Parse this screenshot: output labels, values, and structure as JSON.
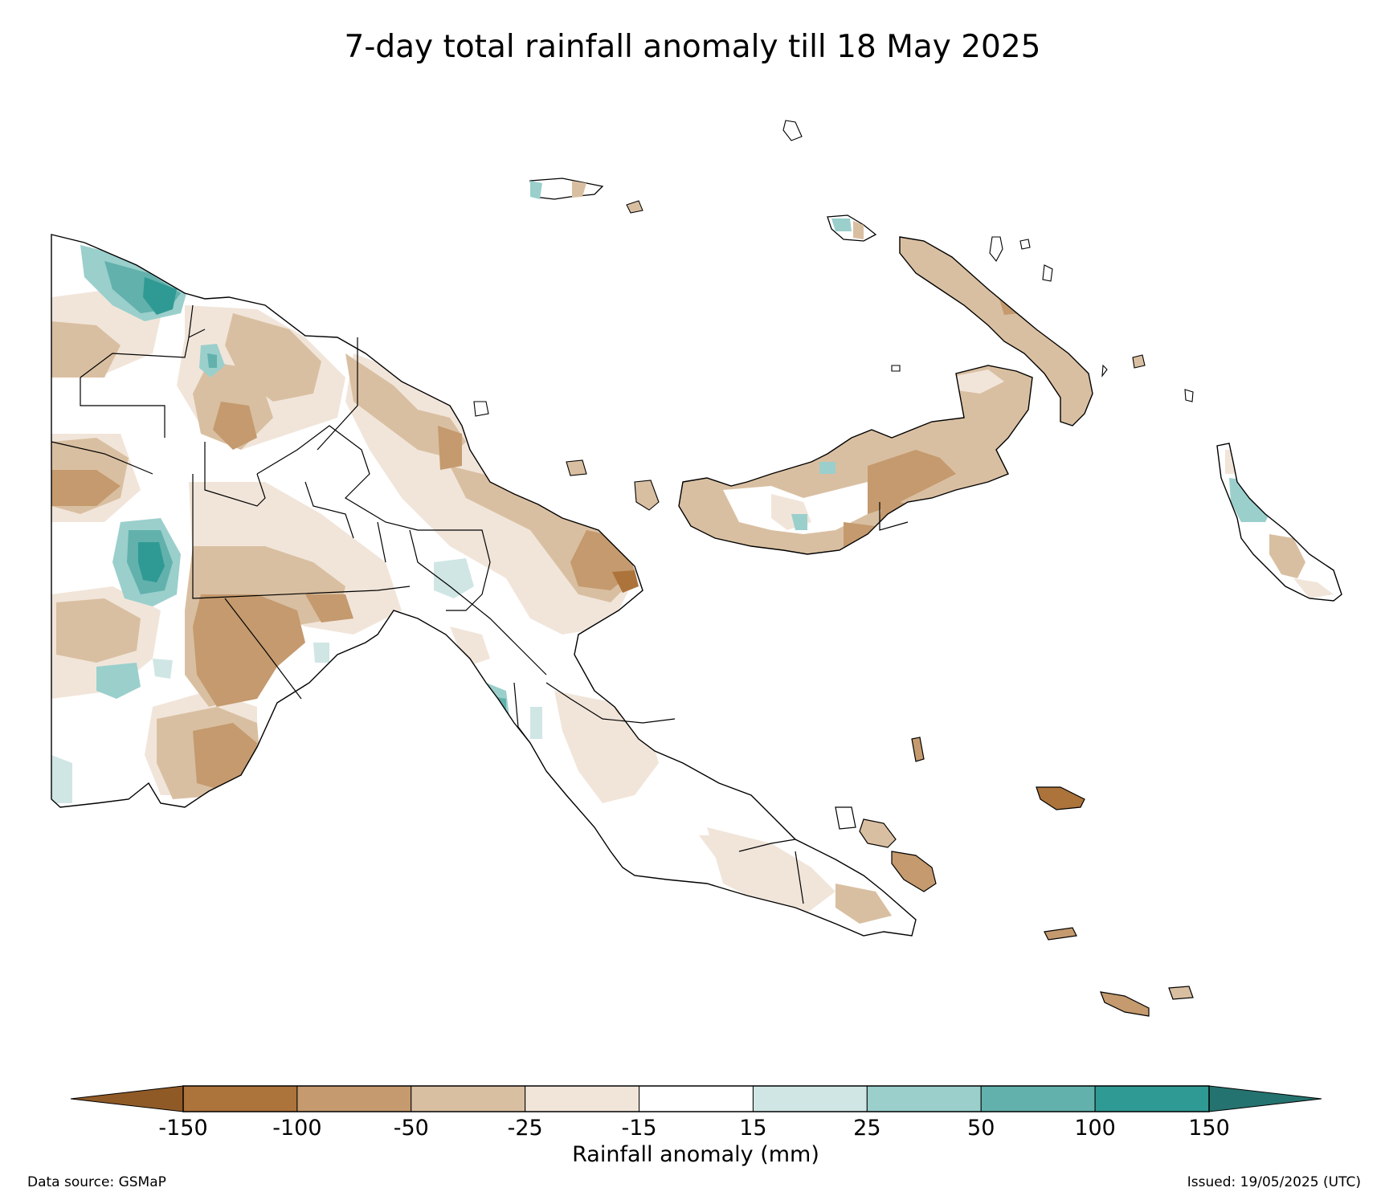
{
  "title": "7-day total rainfall anomaly till 18 May 2025",
  "colorbar": {
    "label": "Rainfall anomaly (mm)",
    "ticks": [
      "-150",
      "-100",
      "-50",
      "-25",
      "-15",
      "15",
      "25",
      "50",
      "100",
      "150"
    ],
    "bins": [
      {
        "range": "< -150",
        "color": "#8f5a26"
      },
      {
        "range": "-150 to -100",
        "color": "#ac733b"
      },
      {
        "range": "-100 to -50",
        "color": "#c49a6e"
      },
      {
        "range": "-50 to -25",
        "color": "#d9bfa1"
      },
      {
        "range": "-25 to -15",
        "color": "#f1e5da"
      },
      {
        "range": "-15 to 15",
        "color": "#ffffff"
      },
      {
        "range": "15 to 25",
        "color": "#cfe6e5"
      },
      {
        "range": "25 to 50",
        "color": "#9acfcc"
      },
      {
        "range": "50 to 100",
        "color": "#62b1ac"
      },
      {
        "range": "100 to 150",
        "color": "#2f9a93"
      },
      {
        "range": "> 150",
        "color": "#257370"
      }
    ]
  },
  "footer": {
    "source": "Data source: GSMaP",
    "issued": "Issued: 19/05/2025 (UTC)"
  }
}
